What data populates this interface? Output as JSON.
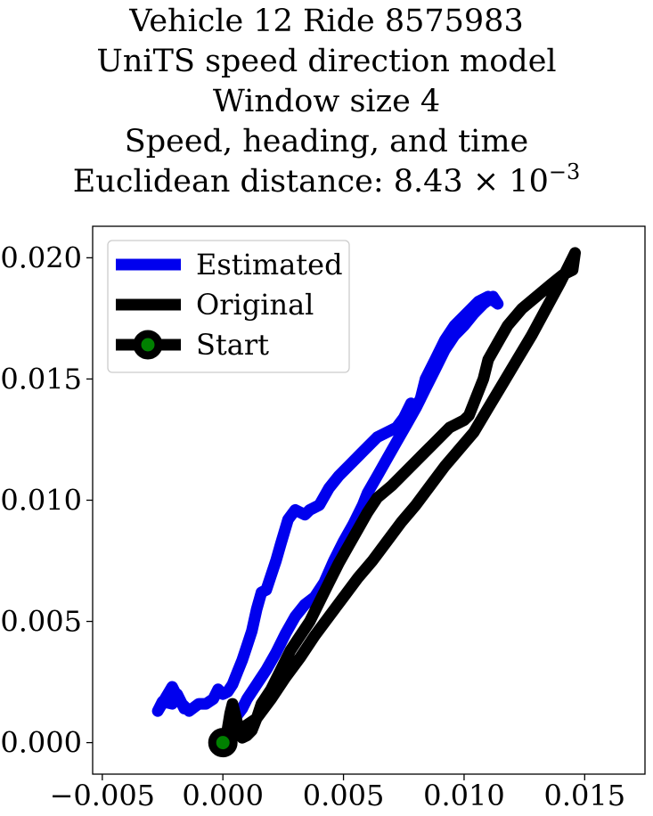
{
  "chart_data": {
    "type": "line",
    "title_lines": [
      "Vehicle 12 Ride 8575983",
      "UniTS speed direction model",
      "Window size 4",
      "Speed, heading, and time"
    ],
    "distance_label": "Euclidean distance: ",
    "distance_mantissa": "8.43",
    "distance_times": "×",
    "distance_base": "10",
    "distance_exponent": "−3",
    "xlim": [
      -0.0054,
      0.0175
    ],
    "ylim": [
      -0.0013,
      0.0213
    ],
    "xticks": [
      -0.005,
      0.0,
      0.005,
      0.01,
      0.015
    ],
    "xtick_labels": [
      "−0.005",
      "0.000",
      "0.005",
      "0.010",
      "0.015"
    ],
    "yticks": [
      0.0,
      0.005,
      0.01,
      0.015,
      0.02
    ],
    "ytick_labels": [
      "0.000",
      "0.005",
      "0.010",
      "0.015",
      "0.020"
    ],
    "grid": false,
    "legend_position": "top-left",
    "series": [
      {
        "name": "Estimated",
        "color": "#0000ee",
        "x": [
          0.0,
          0.0002,
          0.0005,
          0.0008,
          0.001,
          0.0014,
          0.0018,
          0.0022,
          0.0026,
          0.003,
          0.0034,
          0.0038,
          0.0042,
          0.0046,
          0.005,
          0.0054,
          0.0058,
          0.006,
          0.0064,
          0.0068,
          0.0072,
          0.0076,
          0.008,
          0.0084,
          0.0088,
          0.0092,
          0.0096,
          0.01,
          0.0104,
          0.0108,
          0.0112,
          0.0114,
          0.011,
          0.0106,
          0.0102,
          0.0096,
          0.0092,
          0.0088,
          0.0084,
          0.0082,
          0.008,
          0.0078,
          0.0075,
          0.0072,
          0.0068,
          0.0064,
          0.006,
          0.0056,
          0.0052,
          0.0048,
          0.0044,
          0.004,
          0.0036,
          0.0034,
          0.003,
          0.0027,
          0.0024,
          0.0022,
          0.002,
          0.0018,
          0.0016,
          0.0014,
          0.0012,
          0.001,
          0.0008,
          0.0006,
          0.0004,
          0.0002,
          0.0,
          -0.0002,
          -0.0004,
          -0.0007,
          -0.001,
          -0.0014,
          -0.0018,
          -0.0021,
          -0.0024,
          -0.0027,
          -0.0025,
          -0.0021,
          -0.0019,
          -0.0016
        ],
        "y": [
          0.0,
          0.0005,
          0.001,
          0.0014,
          0.0018,
          0.0024,
          0.003,
          0.0037,
          0.0045,
          0.0052,
          0.0057,
          0.006,
          0.0066,
          0.0075,
          0.0083,
          0.009,
          0.0098,
          0.0103,
          0.011,
          0.0117,
          0.0124,
          0.0131,
          0.0138,
          0.0146,
          0.0154,
          0.0162,
          0.0168,
          0.0172,
          0.0177,
          0.0181,
          0.0184,
          0.0181,
          0.0184,
          0.0182,
          0.0178,
          0.0172,
          0.0166,
          0.0158,
          0.015,
          0.0142,
          0.0138,
          0.014,
          0.0134,
          0.013,
          0.0128,
          0.0126,
          0.0122,
          0.0118,
          0.0114,
          0.011,
          0.0105,
          0.0098,
          0.0096,
          0.0094,
          0.0096,
          0.0092,
          0.0082,
          0.0075,
          0.0069,
          0.0063,
          0.0062,
          0.0055,
          0.0046,
          0.004,
          0.0034,
          0.0029,
          0.0024,
          0.0021,
          0.002,
          0.0022,
          0.0018,
          0.0016,
          0.0016,
          0.0013,
          0.0017,
          0.0023,
          0.0018,
          0.0013,
          0.0017,
          0.0016,
          0.002,
          0.0014
        ]
      },
      {
        "name": "Original",
        "color": "#000000",
        "x": [
          0.0,
          0.0004,
          0.0008,
          0.0014,
          0.002,
          0.0026,
          0.0032,
          0.0038,
          0.0044,
          0.005,
          0.0056,
          0.0062,
          0.0068,
          0.0074,
          0.008,
          0.0086,
          0.0092,
          0.0098,
          0.0104,
          0.011,
          0.0116,
          0.0122,
          0.0128,
          0.0134,
          0.014,
          0.0144,
          0.0146,
          0.0145,
          0.0141,
          0.0136,
          0.013,
          0.0124,
          0.0118,
          0.0114,
          0.011,
          0.0108,
          0.0104,
          0.0102,
          0.01,
          0.0094,
          0.0088,
          0.0082,
          0.0076,
          0.007,
          0.0064,
          0.006,
          0.0056,
          0.0052,
          0.0048,
          0.0044,
          0.004,
          0.0036,
          0.0032,
          0.0028,
          0.0024,
          0.002,
          0.0016,
          0.0014,
          0.0012,
          0.001,
          0.0008,
          0.0007,
          0.0006,
          0.0005,
          0.0004,
          0.0003,
          0.0002
        ],
        "y": [
          0.0,
          0.0004,
          0.0006,
          0.001,
          0.0018,
          0.0027,
          0.0035,
          0.0044,
          0.0052,
          0.006,
          0.0068,
          0.0075,
          0.0083,
          0.0091,
          0.0098,
          0.0106,
          0.0114,
          0.0121,
          0.0128,
          0.0138,
          0.0148,
          0.0158,
          0.0168,
          0.0179,
          0.019,
          0.0198,
          0.0202,
          0.0195,
          0.0193,
          0.0189,
          0.0184,
          0.0179,
          0.0172,
          0.0165,
          0.0158,
          0.015,
          0.014,
          0.0135,
          0.0133,
          0.013,
          0.0124,
          0.0118,
          0.0112,
          0.0106,
          0.0101,
          0.0095,
          0.0088,
          0.0081,
          0.0074,
          0.0066,
          0.0058,
          0.005,
          0.0044,
          0.0038,
          0.003,
          0.0022,
          0.0016,
          0.001,
          0.0005,
          0.0003,
          0.0002,
          0.0005,
          0.0008,
          0.0012,
          0.0016,
          0.0012,
          0.0006
        ]
      },
      {
        "name": "Start",
        "color": "#000000",
        "marker_face": "#008000",
        "x": [
          0.0
        ],
        "y": [
          0.0
        ]
      }
    ]
  }
}
